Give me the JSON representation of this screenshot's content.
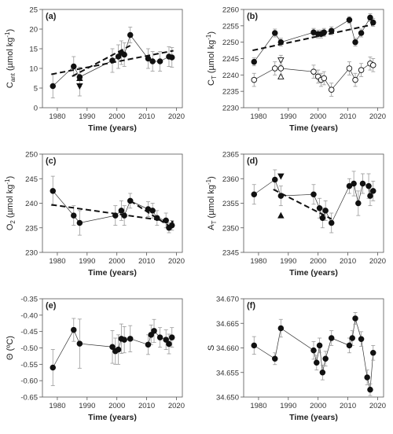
{
  "chart_data": [
    {
      "id": "a",
      "type": "scatter",
      "panel_label": "(a)",
      "xlabel": "Time (years)",
      "ylabel": "Cant (µmol kg⁻¹)",
      "ylabel_parts": {
        "base": "C",
        "sub": "ant",
        "rest": " (µmol kg",
        "sup": "-1",
        "end": ")"
      },
      "xlim": [
        1975,
        2022
      ],
      "ylim": [
        0,
        25
      ],
      "xticks": [
        1980,
        1990,
        2000,
        2010,
        2020
      ],
      "yticks": [
        0,
        5,
        10,
        15,
        20,
        25
      ],
      "ytick_labels": [
        "0",
        "5",
        "10",
        "15",
        "20",
        "25"
      ],
      "series": [
        {
          "marker": "circle-filled",
          "line": "solid-thin",
          "x": [
            1978.5,
            1985.5,
            1987.5,
            1998.5,
            2000.5,
            2001.5,
            2002.5,
            2004.5,
            2010.5,
            2012,
            2014.5,
            2017.5,
            2018.5
          ],
          "y": [
            5.5,
            10.5,
            7.8,
            12.0,
            13.0,
            14.0,
            13.5,
            18.5,
            12.5,
            11.8,
            11.8,
            13.0,
            12.8
          ],
          "err": [
            3.0,
            2.5,
            2.5,
            3.0,
            3.0,
            3.0,
            3.0,
            2.0,
            2.5,
            2.5,
            2.5,
            2.5,
            2.5
          ]
        },
        {
          "marker": "triangle-down-filled",
          "line": "none",
          "x": [
            1987.5
          ],
          "y": [
            5.5
          ],
          "err": [
            2.5
          ]
        },
        {
          "marker": "triangle-up-filled",
          "line": "none",
          "x": [
            1987.5
          ],
          "y": [
            7.5
          ],
          "err": [
            0
          ]
        }
      ],
      "trends": [
        {
          "style": "dash",
          "x": [
            1978,
            2019
          ],
          "y": [
            8.5,
            14.5
          ]
        },
        {
          "style": "dash",
          "x": [
            1985,
            2004.5
          ],
          "y": [
            8.0,
            15.8
          ]
        }
      ]
    },
    {
      "id": "b",
      "type": "scatter",
      "panel_label": "(b)",
      "xlabel": "Time (years)",
      "ylabel": "CT (µmol kg⁻¹)",
      "ylabel_parts": {
        "base": "C",
        "sub": "T",
        "rest": " (µmol kg",
        "sup": "-1",
        "end": ")"
      },
      "xlim": [
        1975,
        2022
      ],
      "ylim": [
        2230,
        2260
      ],
      "xticks": [
        1980,
        1990,
        2000,
        2010,
        2020
      ],
      "yticks": [
        2230,
        2235,
        2240,
        2245,
        2250,
        2255,
        2260
      ],
      "ytick_labels": [
        "2230",
        "2235",
        "2240",
        "2245",
        "2250",
        "2255",
        "2260"
      ],
      "series": [
        {
          "marker": "circle-filled",
          "line": "solid-thin",
          "x": [
            1978.5,
            1985.5,
            1987.5,
            1998.5,
            2000,
            2001,
            2002,
            2004.5,
            2010.5,
            2012.5,
            2014.5,
            2017.5,
            2018.5
          ],
          "y": [
            2244.0,
            2252.8,
            2250.0,
            2253.0,
            2252.5,
            2252.5,
            2253.0,
            2253.5,
            2256.8,
            2250.0,
            2252.8,
            2257.5,
            2256.0
          ],
          "err": [
            1.2,
            1.2,
            1.2,
            1.2,
            1.2,
            1.2,
            1.2,
            1.2,
            1.0,
            1.2,
            1.2,
            1.2,
            1.2
          ]
        },
        {
          "marker": "circle-open",
          "line": "solid-thin",
          "x": [
            1978.5,
            1985.5,
            1987.5,
            1998.5,
            2000,
            2001,
            2002,
            2004.5,
            2010.5,
            2012.5,
            2014.5,
            2017.5,
            2018.5
          ],
          "y": [
            2238.5,
            2242.0,
            2242.0,
            2241.0,
            2239.5,
            2238.5,
            2239.0,
            2235.5,
            2242.0,
            2238.5,
            2241.5,
            2243.5,
            2243.0
          ],
          "err": [
            2.0,
            2.0,
            2.0,
            2.0,
            2.0,
            2.0,
            2.0,
            2.0,
            2.0,
            2.0,
            2.0,
            2.0,
            2.0
          ]
        },
        {
          "marker": "triangle-down-open",
          "line": "none",
          "x": [
            1987.5
          ],
          "y": [
            2244.5
          ],
          "err": [
            1.5
          ]
        },
        {
          "marker": "triangle-up-open",
          "line": "none",
          "x": [
            1987.5
          ],
          "y": [
            2239.5
          ],
          "err": [
            0
          ]
        }
      ],
      "trends": [
        {
          "style": "dash",
          "x": [
            1978,
            2019
          ],
          "y": [
            2247.5,
            2255.5
          ]
        }
      ]
    },
    {
      "id": "c",
      "type": "scatter",
      "panel_label": "(c)",
      "xlabel": "Time (years)",
      "ylabel": "O2 (µmol kg⁻¹)",
      "ylabel_parts": {
        "base": "O",
        "sub": "2",
        "rest": " (µmol kg",
        "sup": "-1",
        "end": ")"
      },
      "xlim": [
        1975,
        2022
      ],
      "ylim": [
        230,
        250
      ],
      "xticks": [
        1980,
        1990,
        2000,
        2010,
        2020
      ],
      "yticks": [
        230,
        235,
        240,
        245,
        250
      ],
      "ytick_labels": [
        "230",
        "235",
        "240",
        "245",
        "250"
      ],
      "series": [
        {
          "marker": "circle-filled",
          "line": "solid-thin",
          "x": [
            1978.5,
            1985.5,
            1987.5,
            1999.5,
            2001.5,
            2002.5,
            2004.5,
            2010.5,
            2012,
            2013.5,
            2016.5,
            2017.5,
            2018.5
          ],
          "y": [
            242.5,
            237.5,
            236.0,
            237.5,
            238.5,
            237.5,
            240.5,
            238.8,
            238.5,
            237.0,
            236.5,
            235.0,
            235.5
          ],
          "err": [
            3.0,
            2.0,
            2.5,
            2.0,
            2.0,
            2.0,
            1.5,
            1.5,
            1.5,
            1.5,
            1.5,
            1.0,
            1.0
          ]
        }
      ],
      "trends": [
        {
          "style": "dash",
          "x": [
            1978,
            2019
          ],
          "y": [
            239.7,
            236.2
          ]
        },
        {
          "style": "dash",
          "x": [
            2004.5,
            2019
          ],
          "y": [
            240.5,
            234.8
          ]
        }
      ]
    },
    {
      "id": "d",
      "type": "scatter",
      "panel_label": "(d)",
      "xlabel": "Time (years)",
      "ylabel": "AT (µmol kg⁻¹)",
      "ylabel_parts": {
        "base": "A",
        "sub": "T",
        "rest": " (µmol kg",
        "sup": "-1",
        "end": ")"
      },
      "xlim": [
        1975,
        2022
      ],
      "ylim": [
        2345,
        2365
      ],
      "xticks": [
        1980,
        1990,
        2000,
        2010,
        2020
      ],
      "yticks": [
        2345,
        2350,
        2355,
        2360,
        2365
      ],
      "ytick_labels": [
        "2345",
        "2350",
        "2355",
        "2360",
        "2365"
      ],
      "series": [
        {
          "marker": "circle-filled",
          "line": "solid-thin",
          "x": [
            1978.5,
            1985.5,
            1987.5,
            1998.5,
            2000.5,
            2001.5,
            2002.5,
            2004.5,
            2010.5,
            2012,
            2013.5,
            2015,
            2017,
            2017.5,
            2018.5
          ],
          "y": [
            2356.8,
            2359.8,
            2356.5,
            2356.8,
            2354.0,
            2352.0,
            2353.5,
            2351.0,
            2358.5,
            2359.0,
            2355.0,
            2359.0,
            2358.5,
            2356.5,
            2357.5
          ],
          "err": [
            2.0,
            2.0,
            2.0,
            2.0,
            2.0,
            2.0,
            2.0,
            2.0,
            1.5,
            2.5,
            2.5,
            2.0,
            2.5,
            2.0,
            2.0
          ]
        },
        {
          "marker": "triangle-down-filled",
          "line": "none",
          "x": [
            1987.5
          ],
          "y": [
            2360.5
          ],
          "err": [
            0
          ]
        },
        {
          "marker": "triangle-up-filled",
          "line": "none",
          "x": [
            1987.5
          ],
          "y": [
            2352.5
          ],
          "err": [
            0
          ]
        }
      ],
      "trends": [
        {
          "style": "dash",
          "x": [
            1985,
            2004.5
          ],
          "y": [
            2357.8,
            2351.8
          ]
        }
      ]
    },
    {
      "id": "e",
      "type": "scatter",
      "panel_label": "(e)",
      "xlabel": "Time (years)",
      "ylabel": "Θ (ºC)",
      "ylabel_parts": {
        "base": "Θ (ºC)",
        "sub": "",
        "rest": "",
        "sup": "",
        "end": ""
      },
      "xlim": [
        1975,
        2022
      ],
      "ylim": [
        -0.65,
        -0.35
      ],
      "xticks": [
        1980,
        1990,
        2000,
        2010,
        2020
      ],
      "yticks": [
        -0.65,
        -0.6,
        -0.55,
        -0.5,
        -0.45,
        -0.4,
        -0.35
      ],
      "ytick_labels": [
        "-0.65",
        "-0.60",
        "-0.55",
        "-0.50",
        "-0.45",
        "-0.40",
        "-0.35"
      ],
      "series": [
        {
          "marker": "circle-filled",
          "line": "solid-thin",
          "x": [
            1978.5,
            1985.5,
            1987.5,
            1998.5,
            1999.5,
            2000.5,
            2001.5,
            2002.5,
            2004.5,
            2010.5,
            2011.5,
            2012.5,
            2014.5,
            2016.5,
            2017.5,
            2018.5
          ],
          "y": [
            -0.56,
            -0.445,
            -0.487,
            -0.497,
            -0.51,
            -0.505,
            -0.472,
            -0.475,
            -0.472,
            -0.49,
            -0.46,
            -0.448,
            -0.468,
            -0.475,
            -0.488,
            -0.468
          ],
          "err": [
            0.055,
            0.035,
            0.075,
            0.05,
            0.04,
            0.045,
            0.045,
            0.04,
            0.04,
            0.03,
            0.03,
            0.035,
            0.03,
            0.03,
            0.03,
            0.03
          ]
        }
      ],
      "trends": []
    },
    {
      "id": "f",
      "type": "scatter",
      "panel_label": "(f)",
      "xlabel": "Time (years)",
      "ylabel": "S",
      "ylabel_parts": {
        "base": "S",
        "sub": "",
        "rest": "",
        "sup": "",
        "end": ""
      },
      "xlim": [
        1975,
        2022
      ],
      "ylim": [
        34.65,
        34.67
      ],
      "xticks": [
        1980,
        1990,
        2000,
        2010,
        2020
      ],
      "yticks": [
        34.65,
        34.655,
        34.66,
        34.665,
        34.67
      ],
      "ytick_labels": [
        "34.650",
        "34.655",
        "34.660",
        "34.665",
        "34.670"
      ],
      "series": [
        {
          "marker": "circle-filled",
          "line": "solid-thin",
          "x": [
            1978.5,
            1985.5,
            1987.5,
            1998.5,
            1999.5,
            2000.5,
            2001.5,
            2002.5,
            2004.5,
            2010.5,
            2011.5,
            2012.5,
            2014.5,
            2016.5,
            2017.5,
            2018.5
          ],
          "y": [
            34.6605,
            34.6578,
            34.664,
            34.6595,
            34.657,
            34.6605,
            34.655,
            34.6578,
            34.662,
            34.6605,
            34.662,
            34.666,
            34.6618,
            34.654,
            34.6515,
            34.659
          ],
          "err": [
            0.0018,
            0.0012,
            0.0018,
            0.0018,
            0.0015,
            0.0015,
            0.0015,
            0.0015,
            0.0015,
            0.0015,
            0.0015,
            0.0012,
            0.0015,
            0.0015,
            0.0012,
            0.0015
          ]
        }
      ],
      "trends": []
    }
  ]
}
